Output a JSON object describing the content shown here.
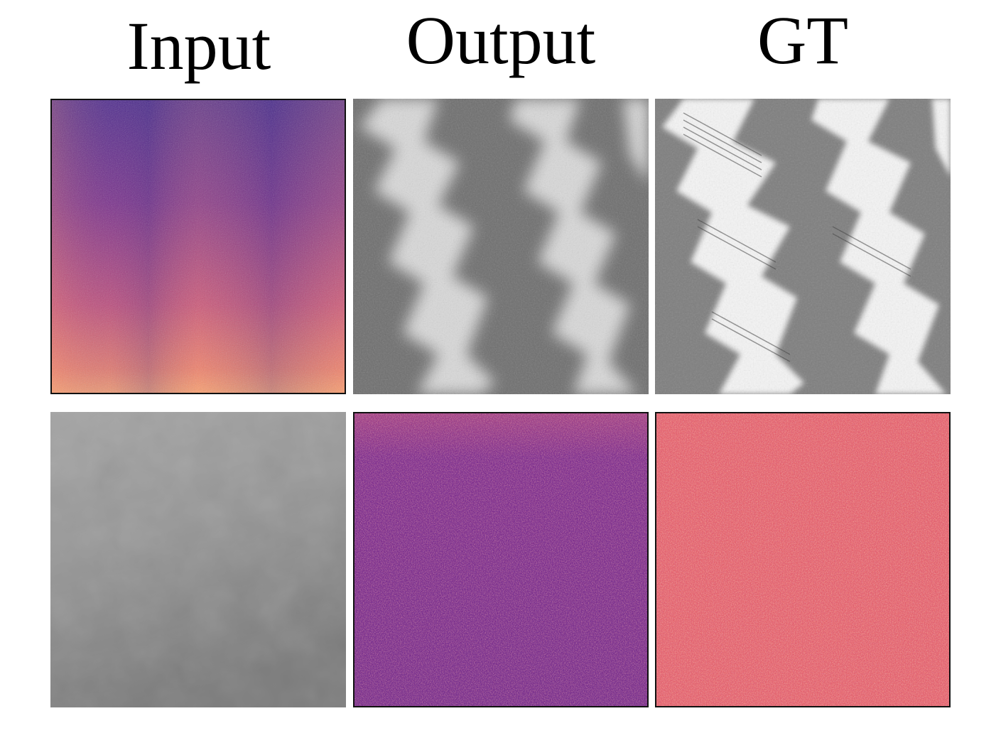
{
  "figure": {
    "columns": [
      {
        "key": "input",
        "title": "Input"
      },
      {
        "key": "output",
        "title": "Output"
      },
      {
        "key": "gt",
        "title": "GT"
      }
    ],
    "rows": [
      {
        "panels": [
          {
            "kind": "spectrogram",
            "palette": "magma",
            "base": "#7a2a8a",
            "bottom": "#f59c6a"
          },
          {
            "kind": "grayscale-pattern",
            "style": "blurred-stripes"
          },
          {
            "kind": "grayscale-pattern",
            "style": "sharp-stripes"
          }
        ]
      },
      {
        "panels": [
          {
            "kind": "grayscale-smooth"
          },
          {
            "kind": "spectrogram",
            "palette": "magma",
            "base": "#7a2a8a"
          },
          {
            "kind": "spectrogram",
            "palette": "magma",
            "base": "#e8606a"
          }
        ]
      }
    ]
  }
}
